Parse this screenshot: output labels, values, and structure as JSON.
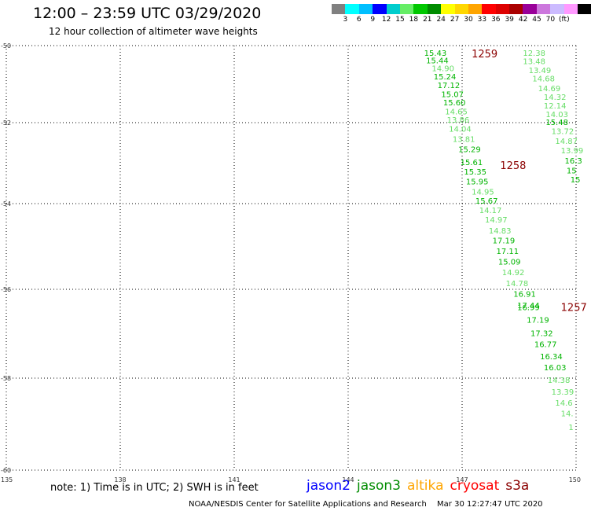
{
  "header": {
    "title": "12:00 – 23:59 UTC 03/29/2020",
    "subtitle": "12 hour collection of altimeter wave heights"
  },
  "legend": {
    "colors": [
      "#808080",
      "#00ffff",
      "#00bfff",
      "#0000ff",
      "#00cdcd",
      "#66ee66",
      "#00c800",
      "#008c00",
      "#ffff00",
      "#ffd700",
      "#ffa500",
      "#ff0000",
      "#dd0000",
      "#aa0000",
      "#990099",
      "#cc77dd",
      "#ccbbff",
      "#ff99ff",
      "#000000"
    ],
    "labels": [
      "3",
      "6",
      "9",
      "12",
      "15",
      "18",
      "21",
      "24",
      "27",
      "30",
      "33",
      "36",
      "39",
      "42",
      "45",
      "70"
    ],
    "unit": "(ft)"
  },
  "axes": {
    "lat_ticks": [
      "-50",
      "-52",
      "-54",
      "-56",
      "-58",
      "-60"
    ],
    "lon_ticks": [
      "135",
      "138",
      "141",
      "144",
      "147",
      "150"
    ]
  },
  "passes": [
    {
      "label": "1259",
      "lon": 147.25,
      "lat": -50.2
    },
    {
      "label": "1258",
      "lon": 148.0,
      "lat": -53.05
    },
    {
      "label": "1257",
      "lon": 149.6,
      "lat": -56.4
    }
  ],
  "tracks": [
    {
      "name": "track-1259-1258-1257",
      "points": [
        {
          "lon": 146.0,
          "lat": -50.18,
          "v": "15.43"
        },
        {
          "lon": 146.05,
          "lat": -50.38,
          "v": "15.44"
        },
        {
          "lon": 146.2,
          "lat": -50.58,
          "v": "14.90"
        },
        {
          "lon": 146.25,
          "lat": -50.8,
          "v": "15.24"
        },
        {
          "lon": 146.35,
          "lat": -51.02,
          "v": "17.12"
        },
        {
          "lon": 146.45,
          "lat": -51.25,
          "v": "15.07"
        },
        {
          "lon": 146.5,
          "lat": -51.47,
          "v": "15.60"
        },
        {
          "lon": 146.55,
          "lat": -51.7,
          "v": "14.65"
        },
        {
          "lon": 146.6,
          "lat": -51.92,
          "v": "13.86"
        },
        {
          "lon": 146.65,
          "lat": -52.15,
          "v": "14.04"
        },
        {
          "lon": 146.75,
          "lat": -52.4,
          "v": "13.81"
        },
        {
          "lon": 146.9,
          "lat": -52.65,
          "v": "15.29"
        },
        {
          "lon": 146.95,
          "lat": -52.97,
          "v": "15.61"
        },
        {
          "lon": 147.05,
          "lat": -53.2,
          "v": "15.35"
        },
        {
          "lon": 147.1,
          "lat": -53.45,
          "v": "15.95"
        },
        {
          "lon": 147.25,
          "lat": -53.7,
          "v": "14.95"
        },
        {
          "lon": 147.35,
          "lat": -53.92,
          "v": "15.67"
        },
        {
          "lon": 147.45,
          "lat": -54.15,
          "v": "14.17"
        },
        {
          "lon": 147.6,
          "lat": -54.37,
          "v": "14.97"
        },
        {
          "lon": 147.7,
          "lat": -54.62,
          "v": "14.83"
        },
        {
          "lon": 147.8,
          "lat": -54.85,
          "v": "17.19"
        },
        {
          "lon": 147.9,
          "lat": -55.1,
          "v": "17.11"
        },
        {
          "lon": 147.95,
          "lat": -55.35,
          "v": "15.09"
        },
        {
          "lon": 148.05,
          "lat": -55.6,
          "v": "14.92"
        },
        {
          "lon": 148.15,
          "lat": -55.85,
          "v": "14.78"
        },
        {
          "lon": 148.35,
          "lat": -56.1,
          "v": "16.91"
        },
        {
          "lon": 148.45,
          "lat": -56.35,
          "v": "17.44"
        },
        {
          "lon": 148.45,
          "lat": -56.4,
          "v": "16.99"
        },
        {
          "lon": 148.7,
          "lat": -56.68,
          "v": "17.19"
        },
        {
          "lon": 148.8,
          "lat": -56.98,
          "v": "17.32"
        },
        {
          "lon": 148.9,
          "lat": -57.23,
          "v": "16.77"
        },
        {
          "lon": 149.05,
          "lat": -57.5,
          "v": "16.34"
        },
        {
          "lon": 149.15,
          "lat": -57.75,
          "v": "16.03"
        },
        {
          "lon": 149.25,
          "lat": -58.03,
          "v": "14.38"
        },
        {
          "lon": 149.35,
          "lat": -58.29,
          "v": "13.39"
        },
        {
          "lon": 149.45,
          "lat": -58.53,
          "v": "14.6"
        },
        {
          "lon": 149.6,
          "lat": -58.76,
          "v": "14."
        },
        {
          "lon": 149.8,
          "lat": -59.06,
          "v": "1"
        }
      ]
    },
    {
      "name": "track-right",
      "points": [
        {
          "lon": 148.6,
          "lat": -50.18,
          "v": "12.38"
        },
        {
          "lon": 148.6,
          "lat": -50.4,
          "v": "13.48"
        },
        {
          "lon": 148.75,
          "lat": -50.63,
          "v": "13.49"
        },
        {
          "lon": 148.85,
          "lat": -50.85,
          "v": "14.68"
        },
        {
          "lon": 149.0,
          "lat": -51.1,
          "v": "14.69"
        },
        {
          "lon": 149.15,
          "lat": -51.33,
          "v": "14.32"
        },
        {
          "lon": 149.15,
          "lat": -51.55,
          "v": "12.14"
        },
        {
          "lon": 149.2,
          "lat": -51.78,
          "v": "14.03"
        },
        {
          "lon": 149.2,
          "lat": -51.98,
          "v": "15.48"
        },
        {
          "lon": 149.35,
          "lat": -52.2,
          "v": "13.72"
        },
        {
          "lon": 149.45,
          "lat": -52.45,
          "v": "14.87"
        },
        {
          "lon": 149.6,
          "lat": -52.68,
          "v": "13.99"
        },
        {
          "lon": 149.7,
          "lat": -52.93,
          "v": "16.3"
        },
        {
          "lon": 149.75,
          "lat": -53.17,
          "v": "15"
        },
        {
          "lon": 149.85,
          "lat": -53.4,
          "v": "15"
        }
      ]
    }
  ],
  "note": "note: 1) Time is in UTC; 2) SWH is in feet",
  "satellites": [
    {
      "name": "jason2",
      "color": "#0000ff"
    },
    {
      "name": "jason3",
      "color": "#008c00"
    },
    {
      "name": "altika",
      "color": "#ffa500"
    },
    {
      "name": "cryosat",
      "color": "#ff0000"
    },
    {
      "name": "s3a",
      "color": "#8b0000"
    }
  ],
  "footer": {
    "credit": "NOAA/NESDIS Center for Satellite Applications and Research",
    "timestamp": "Mar 30 12:27:47 UTC 2020"
  }
}
